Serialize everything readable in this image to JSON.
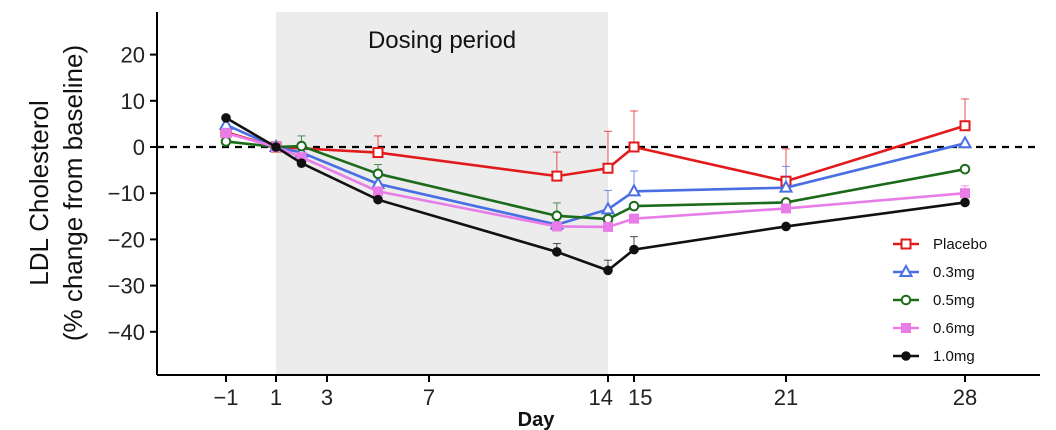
{
  "chart_data": {
    "type": "line",
    "title": "",
    "xlabel": "Day",
    "ylabel_lines": [
      "LDL Cholesterol",
      "(% change from baseline)"
    ],
    "x_ticks": [
      -1,
      1,
      3,
      7,
      14,
      15,
      21,
      28
    ],
    "x_tick_labels": [
      "−1",
      "1",
      "3",
      "7",
      "14",
      "15",
      "21",
      "28"
    ],
    "x_axis_break": "between 14 and 15",
    "y_ticks": [
      20,
      10,
      0,
      -10,
      -20,
      -30,
      -40
    ],
    "y_tick_labels": [
      "20",
      "10",
      "0",
      "−10",
      "−20",
      "−30",
      "−40"
    ],
    "ylim": [
      -49,
      29
    ],
    "reference_line": 0,
    "shaded_region": {
      "label": "Dosing period",
      "from": 1,
      "to": 14
    },
    "legend_position": "bottom-right",
    "grid": false,
    "series": [
      {
        "name": "Placebo",
        "color": "#e31a1c",
        "marker": "square-open",
        "x": [
          -1,
          1,
          5,
          12,
          14,
          15,
          21,
          28
        ],
        "y": [
          3.2,
          0,
          -1.2,
          -6.3,
          -4.6,
          0,
          -7.4,
          4.6
        ],
        "err_up": [
          null,
          null,
          3.6,
          5.2,
          8.0,
          7.8,
          7.0,
          5.8
        ]
      },
      {
        "name": "0.3mg",
        "color": "#4a6fe3",
        "marker": "triangle-open",
        "x": [
          -1,
          1,
          2,
          5,
          12,
          14,
          15,
          21,
          28
        ],
        "y": [
          4.8,
          0,
          -1.2,
          -8,
          -16.8,
          -13.5,
          -9.6,
          -8.8,
          0.8
        ],
        "err_up": [
          null,
          null,
          null,
          null,
          2.5,
          4.1,
          4.4,
          4.6,
          null
        ]
      },
      {
        "name": "0.5mg",
        "color": "#1b6b1b",
        "marker": "circle-open",
        "x": [
          -1,
          1,
          2,
          5,
          12,
          14,
          15,
          21,
          28
        ],
        "y": [
          1.2,
          0,
          0.2,
          -5.8,
          -14.9,
          -15.6,
          -12.8,
          -12.0,
          -4.8
        ],
        "err_up": [
          null,
          null,
          2.2,
          2.0,
          2.8,
          null,
          null,
          null,
          null
        ]
      },
      {
        "name": "0.6mg",
        "color": "#e87de8",
        "marker": "square-filled",
        "x": [
          -1,
          1,
          2,
          5,
          12,
          14,
          15,
          21,
          28
        ],
        "y": [
          3.0,
          0,
          -2.2,
          -9.6,
          -17.2,
          -17.3,
          -15.5,
          -13.3,
          -10.0
        ],
        "err_up": [
          null,
          null,
          null,
          null,
          null,
          null,
          null,
          null,
          1.6
        ]
      },
      {
        "name": "1.0mg",
        "color": "#111111",
        "marker": "circle-filled",
        "x": [
          -1,
          1,
          2,
          5,
          12,
          14,
          15,
          21,
          28
        ],
        "y": [
          6.3,
          0,
          -3.5,
          -11.4,
          -22.7,
          -26.7,
          -22.2,
          -17.2,
          -12.0
        ],
        "err_up": [
          null,
          null,
          null,
          null,
          1.8,
          2.2,
          2.8,
          null,
          null
        ]
      }
    ]
  }
}
